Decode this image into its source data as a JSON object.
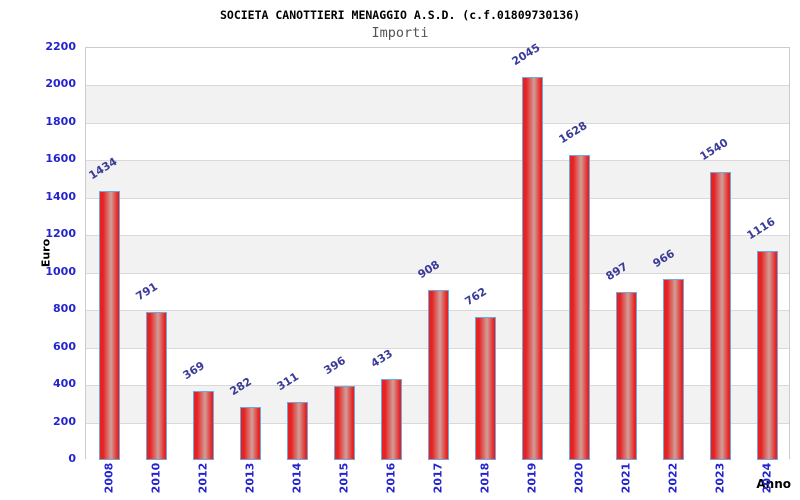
{
  "chart_data": {
    "type": "bar",
    "title": "SOCIETA CANOTTIERI MENAGGIO A.S.D. (c.f.01809730136)",
    "subtitle": "Importi",
    "xlabel": "Anno",
    "ylabel": "Euro",
    "categories": [
      "2008",
      "2010",
      "2012",
      "2013",
      "2014",
      "2015",
      "2016",
      "2017",
      "2018",
      "2019",
      "2020",
      "2021",
      "2022",
      "2023",
      "2024"
    ],
    "values": [
      1434,
      791,
      369,
      282,
      311,
      396,
      433,
      908,
      762,
      2045,
      1628,
      897,
      966,
      1540,
      1116
    ],
    "ylim": [
      0,
      2200
    ],
    "ytick_step": 200,
    "yticks": [
      0,
      200,
      400,
      600,
      800,
      1000,
      1200,
      1400,
      1600,
      1800,
      2000,
      2200
    ],
    "grid": true,
    "legend": "none",
    "colors": {
      "tick_label": "#2424cf",
      "value_label": "#3a3a99",
      "bar_red": "#e62222",
      "bar_highlight": "#d29d97",
      "bar_border": "#6fa8dc",
      "band_white": "#ffffff",
      "band_gray": "#f2f2f2",
      "grid_line": "#d9d9d9",
      "plot_border": "#cccccc",
      "subtitle_color": "#555555"
    }
  }
}
